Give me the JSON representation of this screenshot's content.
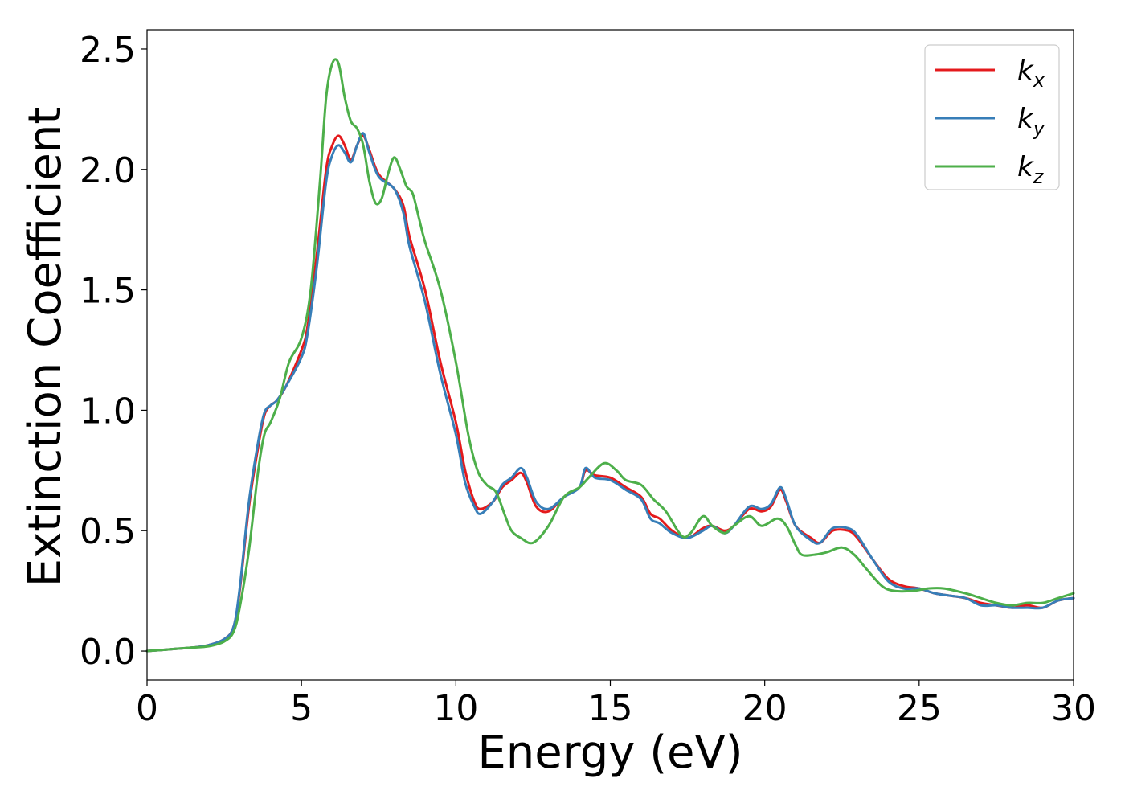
{
  "chart_data": {
    "type": "line",
    "title": "",
    "xlabel": "Energy (eV)",
    "ylabel": "Extinction Coefficient",
    "xlim": [
      0,
      30
    ],
    "ylim": [
      -0.12,
      2.58
    ],
    "xticks": [
      0,
      5,
      10,
      15,
      20,
      25,
      30
    ],
    "yticks": [
      0.0,
      0.5,
      1.0,
      1.5,
      2.0,
      2.5
    ],
    "xtick_labels": [
      "0",
      "5",
      "10",
      "15",
      "20",
      "25",
      "30"
    ],
    "ytick_labels": [
      "0.0",
      "0.5",
      "1.0",
      "1.5",
      "2.0",
      "2.5"
    ],
    "grid": false,
    "legend_position": "top-right",
    "series": [
      {
        "name": "k_x",
        "label_base": "k",
        "label_sub": "x",
        "color": "#e41a1c",
        "points": [
          [
            0,
            0
          ],
          [
            1,
            0.01
          ],
          [
            1.5,
            0.015
          ],
          [
            2,
            0.025
          ],
          [
            2.5,
            0.05
          ],
          [
            2.8,
            0.1
          ],
          [
            3,
            0.25
          ],
          [
            3.3,
            0.6
          ],
          [
            3.6,
            0.85
          ],
          [
            3.8,
            0.98
          ],
          [
            4,
            1.02
          ],
          [
            4.2,
            1.04
          ],
          [
            4.5,
            1.1
          ],
          [
            5,
            1.25
          ],
          [
            5.2,
            1.35
          ],
          [
            5.5,
            1.65
          ],
          [
            5.8,
            2.0
          ],
          [
            6,
            2.1
          ],
          [
            6.2,
            2.14
          ],
          [
            6.4,
            2.1
          ],
          [
            6.6,
            2.04
          ],
          [
            6.8,
            2.1
          ],
          [
            7,
            2.14
          ],
          [
            7.2,
            2.08
          ],
          [
            7.5,
            1.98
          ],
          [
            8,
            1.92
          ],
          [
            8.3,
            1.85
          ],
          [
            8.5,
            1.72
          ],
          [
            9,
            1.5
          ],
          [
            9.5,
            1.2
          ],
          [
            10,
            0.95
          ],
          [
            10.3,
            0.75
          ],
          [
            10.6,
            0.62
          ],
          [
            10.8,
            0.59
          ],
          [
            11.2,
            0.62
          ],
          [
            11.5,
            0.68
          ],
          [
            11.8,
            0.71
          ],
          [
            12.1,
            0.74
          ],
          [
            12.3,
            0.7
          ],
          [
            12.6,
            0.6
          ],
          [
            13,
            0.58
          ],
          [
            13.5,
            0.64
          ],
          [
            14,
            0.68
          ],
          [
            14.2,
            0.75
          ],
          [
            14.5,
            0.73
          ],
          [
            15,
            0.72
          ],
          [
            15.5,
            0.68
          ],
          [
            16,
            0.64
          ],
          [
            16.3,
            0.57
          ],
          [
            16.6,
            0.55
          ],
          [
            17,
            0.5
          ],
          [
            17.5,
            0.47
          ],
          [
            18,
            0.51
          ],
          [
            18.3,
            0.52
          ],
          [
            18.7,
            0.5
          ],
          [
            19,
            0.52
          ],
          [
            19.5,
            0.59
          ],
          [
            19.9,
            0.58
          ],
          [
            20.2,
            0.6
          ],
          [
            20.5,
            0.67
          ],
          [
            20.7,
            0.62
          ],
          [
            21,
            0.52
          ],
          [
            21.5,
            0.47
          ],
          [
            21.8,
            0.45
          ],
          [
            22.2,
            0.5
          ],
          [
            22.7,
            0.5
          ],
          [
            23,
            0.47
          ],
          [
            23.5,
            0.38
          ],
          [
            24,
            0.3
          ],
          [
            24.5,
            0.27
          ],
          [
            25,
            0.26
          ],
          [
            25.5,
            0.24
          ],
          [
            26,
            0.23
          ],
          [
            26.5,
            0.22
          ],
          [
            27,
            0.2
          ],
          [
            27.5,
            0.19
          ],
          [
            28,
            0.18
          ],
          [
            28.5,
            0.19
          ],
          [
            29,
            0.18
          ],
          [
            29.5,
            0.21
          ],
          [
            30,
            0.22
          ]
        ]
      },
      {
        "name": "k_y",
        "label_base": "k",
        "label_sub": "y",
        "color": "#377eb8",
        "points": [
          [
            0,
            0
          ],
          [
            1,
            0.01
          ],
          [
            1.5,
            0.015
          ],
          [
            2,
            0.025
          ],
          [
            2.5,
            0.05
          ],
          [
            2.8,
            0.1
          ],
          [
            3,
            0.26
          ],
          [
            3.3,
            0.62
          ],
          [
            3.6,
            0.87
          ],
          [
            3.8,
            0.99
          ],
          [
            4,
            1.02
          ],
          [
            4.2,
            1.04
          ],
          [
            4.5,
            1.1
          ],
          [
            5,
            1.22
          ],
          [
            5.2,
            1.32
          ],
          [
            5.5,
            1.6
          ],
          [
            5.8,
            1.95
          ],
          [
            6,
            2.06
          ],
          [
            6.2,
            2.1
          ],
          [
            6.4,
            2.07
          ],
          [
            6.6,
            2.03
          ],
          [
            6.8,
            2.1
          ],
          [
            7,
            2.15
          ],
          [
            7.2,
            2.07
          ],
          [
            7.5,
            1.97
          ],
          [
            8,
            1.92
          ],
          [
            8.3,
            1.82
          ],
          [
            8.5,
            1.68
          ],
          [
            9,
            1.45
          ],
          [
            9.5,
            1.15
          ],
          [
            10,
            0.9
          ],
          [
            10.3,
            0.7
          ],
          [
            10.6,
            0.6
          ],
          [
            10.8,
            0.57
          ],
          [
            11.2,
            0.62
          ],
          [
            11.5,
            0.69
          ],
          [
            11.8,
            0.72
          ],
          [
            12.1,
            0.76
          ],
          [
            12.3,
            0.72
          ],
          [
            12.6,
            0.62
          ],
          [
            13,
            0.59
          ],
          [
            13.5,
            0.64
          ],
          [
            14,
            0.68
          ],
          [
            14.2,
            0.76
          ],
          [
            14.5,
            0.72
          ],
          [
            15,
            0.71
          ],
          [
            15.5,
            0.67
          ],
          [
            16,
            0.63
          ],
          [
            16.3,
            0.55
          ],
          [
            16.6,
            0.53
          ],
          [
            17,
            0.49
          ],
          [
            17.5,
            0.47
          ],
          [
            18,
            0.5
          ],
          [
            18.3,
            0.52
          ],
          [
            18.7,
            0.49
          ],
          [
            19,
            0.52
          ],
          [
            19.5,
            0.6
          ],
          [
            19.9,
            0.59
          ],
          [
            20.2,
            0.61
          ],
          [
            20.5,
            0.68
          ],
          [
            20.7,
            0.63
          ],
          [
            21,
            0.52
          ],
          [
            21.5,
            0.46
          ],
          [
            21.8,
            0.45
          ],
          [
            22.2,
            0.51
          ],
          [
            22.7,
            0.51
          ],
          [
            23,
            0.48
          ],
          [
            23.5,
            0.38
          ],
          [
            24,
            0.29
          ],
          [
            24.5,
            0.26
          ],
          [
            25,
            0.26
          ],
          [
            25.5,
            0.24
          ],
          [
            26,
            0.23
          ],
          [
            26.5,
            0.22
          ],
          [
            27,
            0.19
          ],
          [
            27.5,
            0.19
          ],
          [
            28,
            0.18
          ],
          [
            28.5,
            0.18
          ],
          [
            29,
            0.18
          ],
          [
            29.5,
            0.21
          ],
          [
            30,
            0.22
          ]
        ]
      },
      {
        "name": "k_z",
        "label_base": "k",
        "label_sub": "z",
        "color": "#4daf4a",
        "points": [
          [
            0,
            0
          ],
          [
            1,
            0.01
          ],
          [
            1.5,
            0.015
          ],
          [
            2,
            0.02
          ],
          [
            2.5,
            0.04
          ],
          [
            2.8,
            0.08
          ],
          [
            3,
            0.18
          ],
          [
            3.3,
            0.42
          ],
          [
            3.6,
            0.75
          ],
          [
            3.8,
            0.9
          ],
          [
            4,
            0.95
          ],
          [
            4.3,
            1.05
          ],
          [
            4.6,
            1.2
          ],
          [
            5,
            1.3
          ],
          [
            5.3,
            1.5
          ],
          [
            5.6,
            1.95
          ],
          [
            5.8,
            2.3
          ],
          [
            6,
            2.44
          ],
          [
            6.2,
            2.44
          ],
          [
            6.4,
            2.3
          ],
          [
            6.6,
            2.2
          ],
          [
            6.8,
            2.17
          ],
          [
            7,
            2.1
          ],
          [
            7.2,
            1.95
          ],
          [
            7.4,
            1.86
          ],
          [
            7.6,
            1.88
          ],
          [
            7.8,
            1.98
          ],
          [
            8,
            2.05
          ],
          [
            8.2,
            2.0
          ],
          [
            8.4,
            1.93
          ],
          [
            8.6,
            1.9
          ],
          [
            8.8,
            1.8
          ],
          [
            9,
            1.7
          ],
          [
            9.5,
            1.5
          ],
          [
            10,
            1.2
          ],
          [
            10.4,
            0.9
          ],
          [
            10.7,
            0.75
          ],
          [
            11,
            0.69
          ],
          [
            11.3,
            0.66
          ],
          [
            11.6,
            0.56
          ],
          [
            11.8,
            0.5
          ],
          [
            12.1,
            0.47
          ],
          [
            12.5,
            0.45
          ],
          [
            13,
            0.52
          ],
          [
            13.5,
            0.64
          ],
          [
            14,
            0.68
          ],
          [
            14.3,
            0.72
          ],
          [
            14.8,
            0.78
          ],
          [
            15.2,
            0.75
          ],
          [
            15.5,
            0.71
          ],
          [
            16,
            0.69
          ],
          [
            16.4,
            0.63
          ],
          [
            16.8,
            0.58
          ],
          [
            17.3,
            0.48
          ],
          [
            17.6,
            0.49
          ],
          [
            18,
            0.56
          ],
          [
            18.3,
            0.52
          ],
          [
            18.7,
            0.49
          ],
          [
            19,
            0.52
          ],
          [
            19.5,
            0.56
          ],
          [
            19.9,
            0.52
          ],
          [
            20.4,
            0.55
          ],
          [
            20.7,
            0.52
          ],
          [
            21,
            0.44
          ],
          [
            21.2,
            0.4
          ],
          [
            21.6,
            0.4
          ],
          [
            22,
            0.41
          ],
          [
            22.5,
            0.43
          ],
          [
            22.9,
            0.4
          ],
          [
            23.3,
            0.34
          ],
          [
            23.8,
            0.27
          ],
          [
            24.2,
            0.25
          ],
          [
            24.8,
            0.25
          ],
          [
            25.3,
            0.26
          ],
          [
            25.8,
            0.26
          ],
          [
            26.5,
            0.24
          ],
          [
            27,
            0.22
          ],
          [
            27.5,
            0.2
          ],
          [
            28,
            0.19
          ],
          [
            28.5,
            0.2
          ],
          [
            29,
            0.2
          ],
          [
            29.5,
            0.22
          ],
          [
            30,
            0.24
          ]
        ]
      }
    ]
  }
}
